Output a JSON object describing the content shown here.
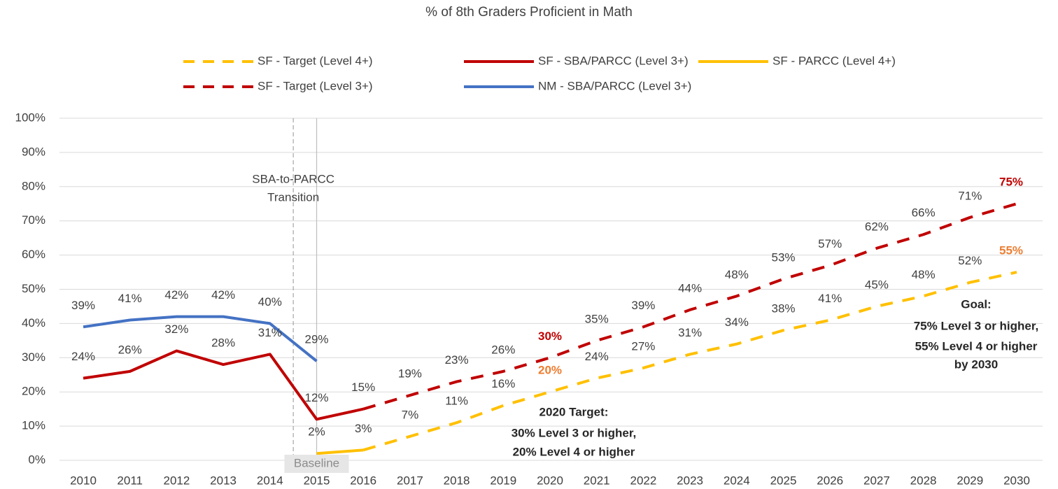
{
  "chart_data": {
    "type": "line",
    "title": "% of 8th Graders Proficient in Math",
    "categories": [
      "2010",
      "2011",
      "2012",
      "2013",
      "2014",
      "2015",
      "2016",
      "2017",
      "2018",
      "2019",
      "2020",
      "2021",
      "2022",
      "2023",
      "2024",
      "2025",
      "2026",
      "2027",
      "2028",
      "2029",
      "2030"
    ],
    "ylim": [
      0,
      100
    ],
    "yticks": [
      {
        "value": 0,
        "label": "0%"
      },
      {
        "value": 10,
        "label": "10%"
      },
      {
        "value": 20,
        "label": "20%"
      },
      {
        "value": 30,
        "label": "30%"
      },
      {
        "value": 40,
        "label": "40%"
      },
      {
        "value": 50,
        "label": "50%"
      },
      {
        "value": 60,
        "label": "60%"
      },
      {
        "value": 70,
        "label": "70%"
      },
      {
        "value": 80,
        "label": "80%"
      },
      {
        "value": 90,
        "label": "90%"
      },
      {
        "value": 100,
        "label": "100%"
      }
    ],
    "grid": true,
    "legend": "top",
    "highlight_categories": [
      "2020",
      "2030"
    ],
    "series": [
      {
        "name": "SF - Target (Level 4+)",
        "color": "#ffc000",
        "dash": true,
        "highlight_label_color": "#ed7d31",
        "values": [
          null,
          null,
          null,
          null,
          null,
          null,
          3,
          7,
          11,
          16,
          20,
          24,
          27,
          31,
          34,
          38,
          41,
          45,
          48,
          52,
          55
        ],
        "value_labels": [
          null,
          null,
          null,
          null,
          null,
          null,
          null,
          "7%",
          "11%",
          "16%",
          "20%",
          "24%",
          "27%",
          "31%",
          "34%",
          "38%",
          "41%",
          "45%",
          "48%",
          "52%",
          "55%"
        ]
      },
      {
        "name": "SF - SBA/PARCC (Level 3+)",
        "color": "#c00000",
        "dash": false,
        "values": [
          24,
          26,
          32,
          28,
          31,
          12,
          15,
          null,
          null,
          null,
          null,
          null,
          null,
          null,
          null,
          null,
          null,
          null,
          null,
          null,
          null
        ],
        "value_labels": [
          "24%",
          "26%",
          "32%",
          "28%",
          "31%",
          "12%",
          "15%",
          null,
          null,
          null,
          null,
          null,
          null,
          null,
          null,
          null,
          null,
          null,
          null,
          null,
          null
        ]
      },
      {
        "name": "SF - PARCC (Level 4+)",
        "color": "#ffc000",
        "dash": false,
        "values": [
          null,
          null,
          null,
          null,
          null,
          2,
          3,
          null,
          null,
          null,
          null,
          null,
          null,
          null,
          null,
          null,
          null,
          null,
          null,
          null,
          null
        ],
        "value_labels": [
          null,
          null,
          null,
          null,
          null,
          "2%",
          "3%",
          null,
          null,
          null,
          null,
          null,
          null,
          null,
          null,
          null,
          null,
          null,
          null,
          null,
          null
        ]
      },
      {
        "name": "SF - Target (Level 3+)",
        "color": "#c00000",
        "dash": true,
        "highlight_label_color": "#c00000",
        "values": [
          null,
          null,
          null,
          null,
          null,
          null,
          15,
          19,
          23,
          26,
          30,
          35,
          39,
          44,
          48,
          53,
          57,
          62,
          66,
          71,
          75
        ],
        "value_labels": [
          null,
          null,
          null,
          null,
          null,
          null,
          null,
          "19%",
          "23%",
          "26%",
          "30%",
          "35%",
          "39%",
          "44%",
          "48%",
          "53%",
          "57%",
          "62%",
          "66%",
          "71%",
          "75%"
        ]
      },
      {
        "name": "NM - SBA/PARCC (Level 3+)",
        "color": "#4472c4",
        "dash": false,
        "values": [
          39,
          41,
          42,
          42,
          40,
          29,
          null,
          null,
          null,
          null,
          null,
          null,
          null,
          null,
          null,
          null,
          null,
          null,
          null,
          null,
          null
        ],
        "value_labels": [
          "39%",
          "41%",
          "42%",
          "42%",
          "40%",
          "29%",
          null,
          null,
          null,
          null,
          null,
          null,
          null,
          null,
          null,
          null,
          null,
          null,
          null,
          null,
          null
        ]
      }
    ],
    "annotations": [
      {
        "lines": [
          "SBA-to-PARCC",
          "Transition"
        ]
      },
      {
        "lines": [
          "Baseline"
        ]
      },
      {
        "lines": [
          "2020 Target:",
          "30% Level 3 or higher,",
          "20% Level 4 or higher"
        ]
      },
      {
        "lines": [
          "Goal:",
          "75% Level 3 or higher,",
          "55% Level 4 or higher",
          "by 2030"
        ]
      }
    ]
  }
}
